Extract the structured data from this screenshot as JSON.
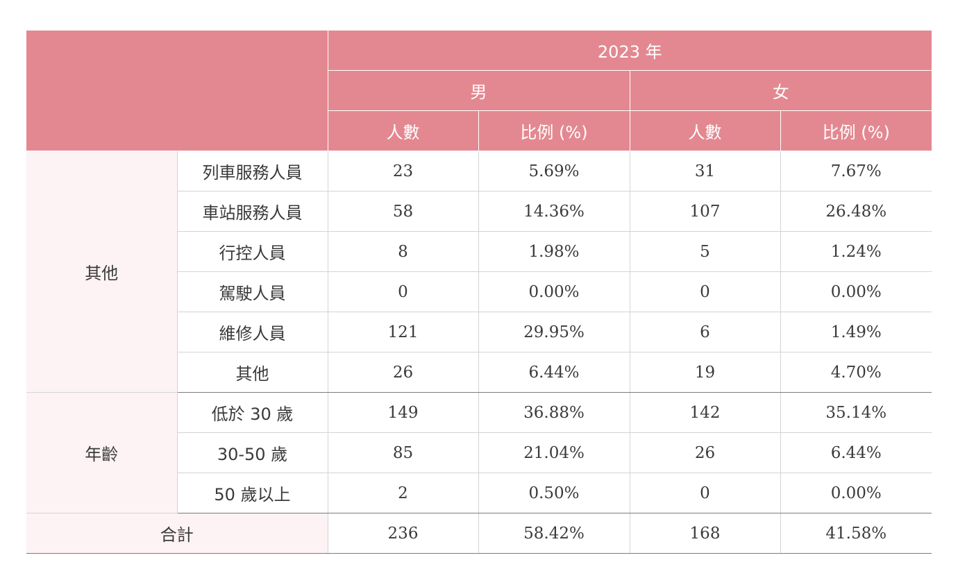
{
  "header": {
    "year": "2023 年",
    "genders": [
      "男",
      "女"
    ],
    "subheaders": [
      "人數",
      "比例 (%)",
      "人數",
      "比例 (%)"
    ]
  },
  "groups": [
    {
      "label": "其他",
      "rows": [
        {
          "item": "列車服務人員",
          "m_count": "23",
          "m_pct": "5.69%",
          "f_count": "31",
          "f_pct": "7.67%"
        },
        {
          "item": "車站服務人員",
          "m_count": "58",
          "m_pct": "14.36%",
          "f_count": "107",
          "f_pct": "26.48%"
        },
        {
          "item": "行控人員",
          "m_count": "8",
          "m_pct": "1.98%",
          "f_count": "5",
          "f_pct": "1.24%"
        },
        {
          "item": "駕駛人員",
          "m_count": "0",
          "m_pct": "0.00%",
          "f_count": "0",
          "f_pct": "0.00%"
        },
        {
          "item": "維修人員",
          "m_count": "121",
          "m_pct": "29.95%",
          "f_count": "6",
          "f_pct": "1.49%"
        },
        {
          "item": "其他",
          "m_count": "26",
          "m_pct": "6.44%",
          "f_count": "19",
          "f_pct": "4.70%"
        }
      ]
    },
    {
      "label": "年齡",
      "rows": [
        {
          "item": "低於 30 歲",
          "m_count": "149",
          "m_pct": "36.88%",
          "f_count": "142",
          "f_pct": "35.14%"
        },
        {
          "item": "30-50 歲",
          "m_count": "85",
          "m_pct": "21.04%",
          "f_count": "26",
          "f_pct": "6.44%"
        },
        {
          "item": "50 歲以上",
          "m_count": "2",
          "m_pct": "0.50%",
          "f_count": "0",
          "f_pct": "0.00%"
        }
      ]
    }
  ],
  "total": {
    "label": "合計",
    "m_count": "236",
    "m_pct": "58.42%",
    "f_count": "168",
    "f_pct": "41.58%"
  },
  "colors": {
    "header_bg": "#e38891",
    "group_bg": "#fdf2f4",
    "grid": "#d4d4d4"
  }
}
